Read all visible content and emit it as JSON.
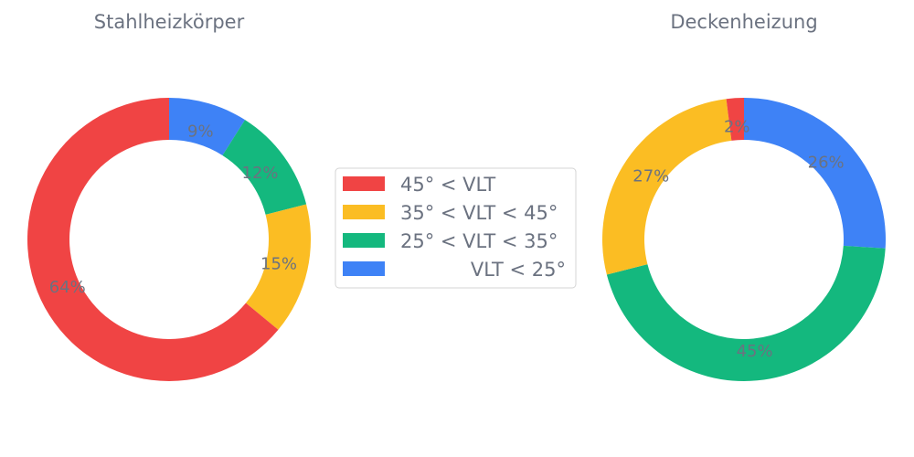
{
  "colors": {
    "red": "#f04444",
    "yellow": "#fbbd23",
    "green": "#14b87e",
    "blue": "#3e82f6",
    "text": "#6b7280"
  },
  "legend": {
    "items": [
      {
        "label": "45° < VLT",
        "color": "#f04444"
      },
      {
        "label": "35° < VLT < 45°",
        "color": "#fbbd23"
      },
      {
        "label": "25° < VLT < 35°",
        "color": "#14b87e"
      },
      {
        "label": "VLT < 25°",
        "color": "#3e82f6"
      }
    ]
  },
  "chart_data": [
    {
      "type": "pie",
      "style": "donut",
      "title": "Stahlheizkörper",
      "legend_position": "center",
      "slices": [
        {
          "label": "VLT < 25°",
          "value": 9,
          "display": "9%",
          "color": "#3e82f6"
        },
        {
          "label": "25° < VLT < 35°",
          "value": 12,
          "display": "12%",
          "color": "#14b87e"
        },
        {
          "label": "35° < VLT < 45°",
          "value": 15,
          "display": "15%",
          "color": "#fbbd23"
        },
        {
          "label": "45° < VLT",
          "value": 64,
          "display": "64%",
          "color": "#f04444"
        }
      ]
    },
    {
      "type": "pie",
      "style": "donut",
      "title": "Deckenheizung",
      "legend_position": "center",
      "slices": [
        {
          "label": "VLT < 25°",
          "value": 26,
          "display": "26%",
          "color": "#3e82f6"
        },
        {
          "label": "25° < VLT < 35°",
          "value": 45,
          "display": "45%",
          "color": "#14b87e"
        },
        {
          "label": "35° < VLT < 45°",
          "value": 27,
          "display": "27%",
          "color": "#fbbd23"
        },
        {
          "label": "45° < VLT",
          "value": 2,
          "display": "2%",
          "color": "#f04444"
        }
      ]
    }
  ]
}
